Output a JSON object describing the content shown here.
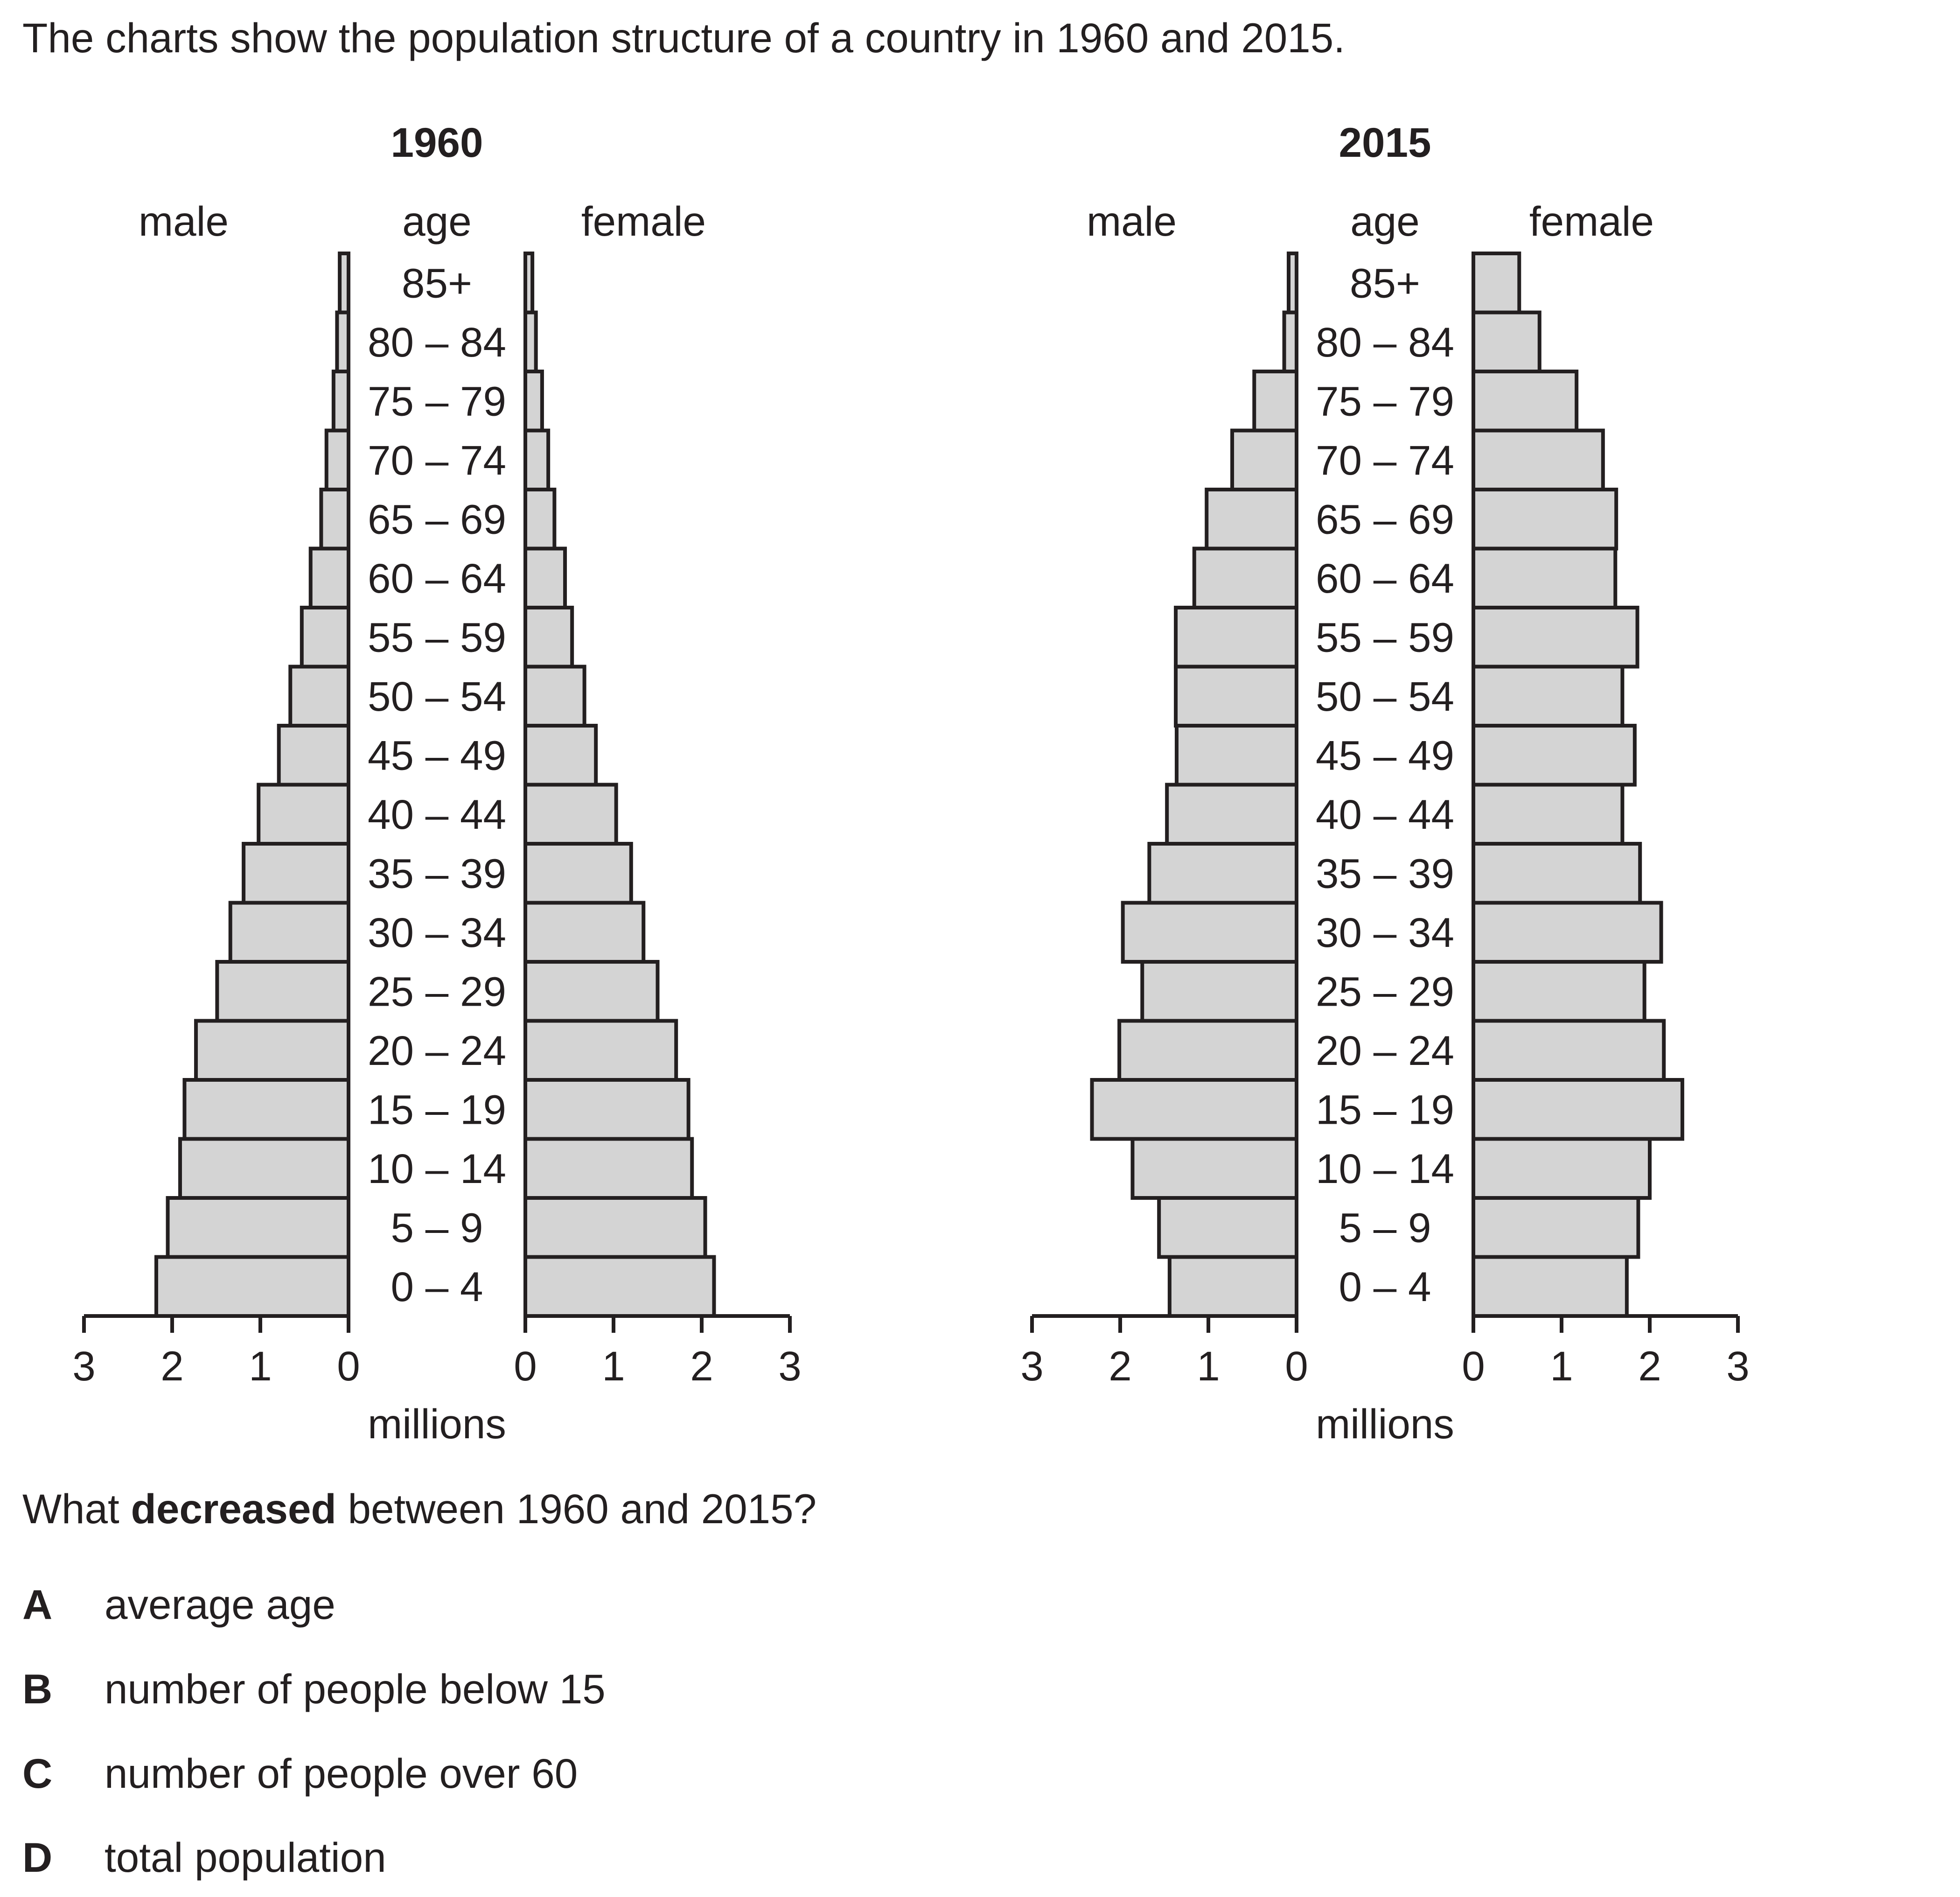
{
  "intro_text": "The charts show the population structure of a country in 1960 and 2015.",
  "question": {
    "prefix": "What ",
    "emphasis": "decreased",
    "suffix": " between 1960 and 2015?"
  },
  "options": [
    {
      "letter": "A",
      "text": "average age"
    },
    {
      "letter": "B",
      "text": "number of people below 15"
    },
    {
      "letter": "C",
      "text": "number of people over 60"
    },
    {
      "letter": "D",
      "text": "total population"
    }
  ],
  "colors": {
    "bar_fill": "#d4d4d4",
    "stroke": "#231f20"
  },
  "chart_data": [
    {
      "type": "bar",
      "title": "1960",
      "left_label": "male",
      "center_label": "age",
      "right_label": "female",
      "xlabel": "millions",
      "xlim": [
        0,
        3
      ],
      "xticks": [
        "0",
        "1",
        "2",
        "3"
      ],
      "categories": [
        "85+",
        "80 – 84",
        "75 – 79",
        "70 – 74",
        "65 – 69",
        "60 – 64",
        "55 – 59",
        "50 – 54",
        "45 – 49",
        "40 – 44",
        "35 – 39",
        "30 – 34",
        "25 – 29",
        "20 – 24",
        "15 – 19",
        "10 – 14",
        "5 – 9",
        "0 – 4"
      ],
      "series": [
        {
          "name": "male",
          "values": [
            0.1,
            0.13,
            0.17,
            0.25,
            0.31,
            0.43,
            0.53,
            0.66,
            0.79,
            1.02,
            1.19,
            1.34,
            1.49,
            1.73,
            1.86,
            1.91,
            2.05,
            2.18
          ]
        },
        {
          "name": "female",
          "values": [
            0.08,
            0.12,
            0.19,
            0.26,
            0.33,
            0.45,
            0.53,
            0.67,
            0.8,
            1.03,
            1.2,
            1.34,
            1.5,
            1.71,
            1.85,
            1.89,
            2.04,
            2.14
          ]
        }
      ]
    },
    {
      "type": "bar",
      "title": "2015",
      "left_label": "male",
      "center_label": "age",
      "right_label": "female",
      "xlabel": "millions",
      "xlim": [
        0,
        3
      ],
      "xticks": [
        "0",
        "1",
        "2",
        "3"
      ],
      "categories": [
        "85+",
        "80 – 84",
        "75 – 79",
        "70 – 74",
        "65 – 69",
        "60 – 64",
        "55 – 59",
        "50 – 54",
        "45 – 49",
        "40 – 44",
        "35 – 39",
        "30 – 34",
        "25 – 29",
        "20 – 24",
        "15 – 19",
        "10 – 14",
        "5 – 9",
        "0 – 4"
      ],
      "series": [
        {
          "name": "male",
          "values": [
            0.09,
            0.14,
            0.48,
            0.73,
            1.02,
            1.16,
            1.37,
            1.37,
            1.36,
            1.47,
            1.67,
            1.97,
            1.75,
            2.01,
            2.32,
            1.86,
            1.56,
            1.44
          ]
        },
        {
          "name": "female",
          "values": [
            0.52,
            0.75,
            1.17,
            1.47,
            1.62,
            1.61,
            1.86,
            1.69,
            1.83,
            1.69,
            1.89,
            2.13,
            1.94,
            2.16,
            2.37,
            2.0,
            1.87,
            1.74
          ]
        }
      ]
    }
  ]
}
